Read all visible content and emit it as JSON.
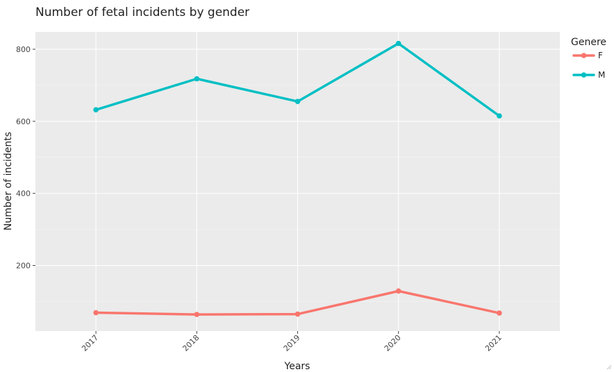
{
  "chart_data": {
    "type": "line",
    "title": "Number of fetal incidents by gender",
    "xlabel": "Years",
    "ylabel": "Number of incidents",
    "categories": [
      "2017",
      "2018",
      "2019",
      "2020",
      "2021"
    ],
    "yticks": [
      200,
      400,
      600,
      800
    ],
    "ylim": [
      18,
      848
    ],
    "grid": true,
    "legend": {
      "title": "Genere",
      "position": "right"
    },
    "series": [
      {
        "name": "F",
        "color": "#F8766D",
        "values": [
          69,
          64,
          65,
          129,
          68
        ]
      },
      {
        "name": "M",
        "color": "#00BFC4",
        "values": [
          632,
          718,
          655,
          816,
          615
        ]
      }
    ]
  }
}
